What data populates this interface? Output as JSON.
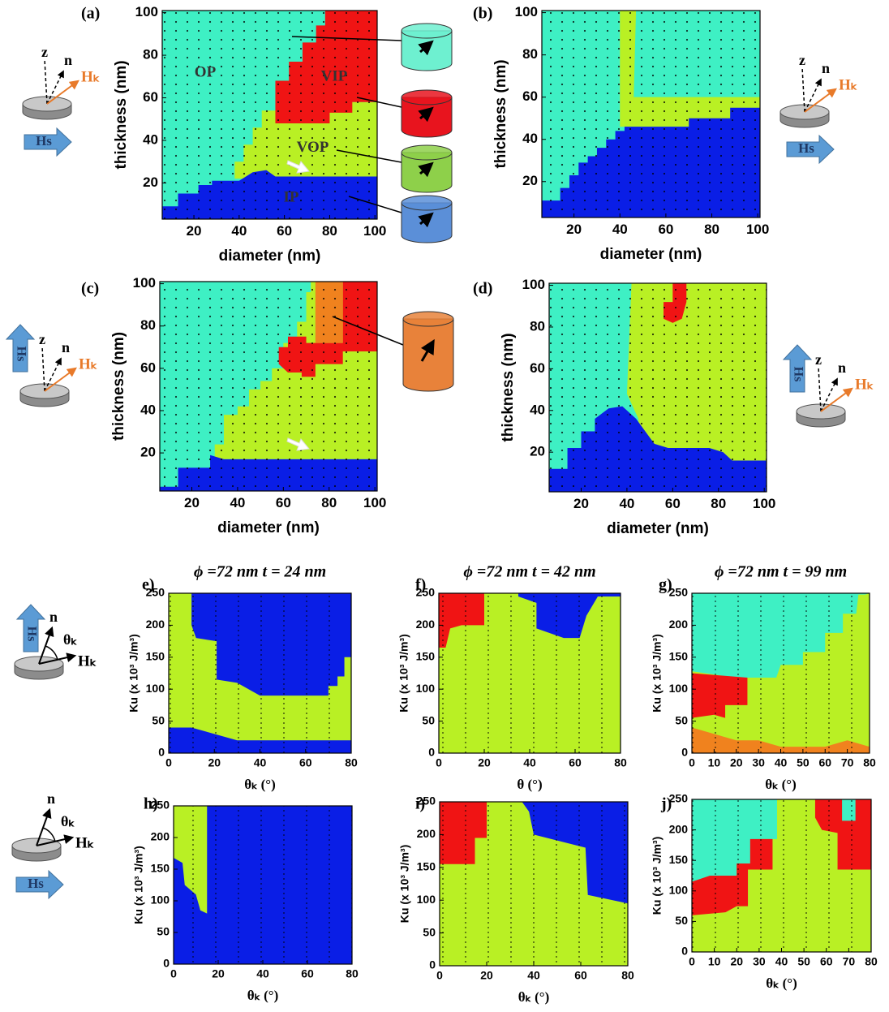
{
  "chart_data": [
    {
      "type": "phase",
      "label": "(a)",
      "x_label": "diameter (nm)",
      "y_label": "thickness (nm)",
      "xlim": [
        6,
        101
      ],
      "ylim": [
        3,
        101
      ],
      "xticks": [
        20,
        40,
        60,
        80,
        100
      ],
      "yticks": [
        20,
        40,
        60,
        80,
        100
      ],
      "annotations": [
        "OP",
        "VIP",
        "VOP",
        "IP"
      ],
      "inset": {
        "kind": "tilt",
        "field": "right",
        "labels": [
          "z",
          "n",
          "Hₖ",
          "Hs"
        ]
      },
      "regions": [
        {
          "color": "#3ef0c4",
          "x": [
            6,
            101,
            101,
            6
          ],
          "y": [
            3,
            3,
            101,
            101
          ]
        },
        {
          "color": "#b9f024",
          "x": [
            38,
            38,
            42,
            42,
            46,
            46,
            50,
            50,
            56,
            56,
            101,
            101
          ],
          "y": [
            22,
            30,
            30,
            38,
            38,
            46,
            46,
            54,
            54,
            58,
            58,
            22
          ]
        },
        {
          "color": "#f01414",
          "x": [
            56,
            56,
            62,
            62,
            68,
            68,
            74,
            74,
            78,
            78,
            101,
            101,
            90,
            90,
            80,
            80
          ],
          "y": [
            48,
            68,
            68,
            77,
            77,
            86,
            86,
            94,
            94,
            101,
            101,
            58,
            58,
            53,
            53,
            48
          ]
        },
        {
          "color": "#0a1ee6",
          "x": [
            6,
            6,
            13,
            13,
            22,
            22,
            28,
            28,
            40,
            46,
            52,
            56,
            101,
            101
          ],
          "y": [
            3,
            9,
            9,
            15,
            15,
            19,
            19,
            21,
            21,
            25,
            26,
            23,
            23,
            3
          ]
        }
      ]
    },
    {
      "type": "phase",
      "label": "(b)",
      "x_label": "diameter (nm)",
      "y_label": "thickness (nm)",
      "xlim": [
        6,
        101
      ],
      "ylim": [
        3,
        101
      ],
      "xticks": [
        20,
        40,
        60,
        80,
        100
      ],
      "yticks": [
        20,
        40,
        60,
        80,
        100
      ],
      "inset": {
        "kind": "tilt",
        "field": "right",
        "labels": [
          "z",
          "n",
          "Hₖ",
          "Hs"
        ]
      },
      "regions": [
        {
          "color": "#3ef0c4",
          "x": [
            6,
            101,
            101,
            6
          ],
          "y": [
            3,
            3,
            101,
            101
          ]
        },
        {
          "color": "#b9f024",
          "x": [
            40,
            47,
            46,
            101,
            101,
            40
          ],
          "y": [
            101,
            101,
            60,
            60,
            46,
            46
          ]
        },
        {
          "color": "#0a1ee6",
          "x": [
            6,
            6,
            14,
            14,
            18,
            18,
            22,
            22,
            26,
            26,
            30,
            30,
            34,
            34,
            38,
            38,
            42,
            42,
            70,
            70,
            88,
            88,
            101,
            101
          ],
          "y": [
            3,
            11,
            11,
            17,
            17,
            23,
            23,
            29,
            29,
            32,
            32,
            36,
            36,
            40,
            40,
            44,
            44,
            46,
            46,
            50,
            50,
            55,
            55,
            3
          ]
        }
      ]
    },
    {
      "type": "phase",
      "label": "(c)",
      "x_label": "diameter (nm)",
      "y_label": "thickness (nm)",
      "xlim": [
        6,
        101
      ],
      "ylim": [
        2,
        101
      ],
      "xticks": [
        20,
        40,
        60,
        80,
        100
      ],
      "yticks": [
        20,
        40,
        60,
        80,
        100
      ],
      "inset": {
        "kind": "tilt",
        "field": "up",
        "labels": [
          "z",
          "n",
          "Hₖ",
          "Hs"
        ]
      },
      "regions": [
        {
          "color": "#3ef0c4",
          "x": [
            6,
            101,
            101,
            6
          ],
          "y": [
            2,
            2,
            101,
            101
          ]
        },
        {
          "color": "#b9f024",
          "x": [
            30,
            30,
            34,
            34,
            40,
            40,
            45,
            45,
            50,
            50,
            55,
            55,
            60,
            60,
            66,
            66,
            70,
            70,
            72,
            72,
            101,
            101
          ],
          "y": [
            17,
            24,
            24,
            38,
            38,
            42,
            42,
            50,
            50,
            54,
            54,
            60,
            60,
            72,
            72,
            82,
            82,
            96,
            96,
            101,
            101,
            17
          ]
        },
        {
          "color": "#f01414",
          "x": [
            58,
            58,
            62,
            62,
            70,
            70,
            86,
            86,
            101,
            101,
            86,
            86,
            74,
            74,
            68,
            68,
            62
          ],
          "y": [
            62,
            70,
            70,
            75,
            75,
            72,
            72,
            101,
            101,
            68,
            68,
            62,
            62,
            56,
            56,
            58,
            58
          ]
        },
        {
          "color": "#f0821e",
          "x": [
            74,
            74,
            86,
            86
          ],
          "y": [
            72,
            101,
            101,
            72
          ]
        },
        {
          "color": "#0a1ee6",
          "x": [
            6,
            6,
            14,
            14,
            28,
            28,
            34,
            101,
            101
          ],
          "y": [
            2,
            4,
            4,
            13,
            13,
            19,
            17,
            17,
            2
          ]
        }
      ]
    },
    {
      "type": "phase",
      "label": "(d)",
      "x_label": "diameter (nm)",
      "y_label": "thickness (nm)",
      "xlim": [
        6,
        101
      ],
      "ylim": [
        1,
        101
      ],
      "xticks": [
        20,
        40,
        60,
        80,
        100
      ],
      "yticks": [
        20,
        40,
        60,
        80,
        100
      ],
      "inset": {
        "kind": "tilt",
        "field": "up",
        "labels": [
          "z",
          "n",
          "Hₖ",
          "Hs"
        ]
      },
      "regions": [
        {
          "color": "#3ef0c4",
          "x": [
            6,
            101,
            101,
            6
          ],
          "y": [
            1,
            1,
            101,
            101
          ]
        },
        {
          "color": "#b9f024",
          "x": [
            42,
            101,
            101,
            45,
            45,
            40
          ],
          "y": [
            101,
            101,
            10,
            10,
            36,
            48
          ]
        },
        {
          "color": "#f01414",
          "x": [
            60,
            66,
            66,
            64,
            60,
            56,
            56,
            60
          ],
          "y": [
            101,
            101,
            92,
            84,
            82,
            84,
            92,
            92
          ]
        },
        {
          "color": "#0a1ee6",
          "x": [
            6,
            6,
            14,
            14,
            20,
            20,
            26,
            26,
            32,
            38,
            44,
            48,
            52,
            58,
            76,
            82,
            86,
            101,
            101
          ],
          "y": [
            1,
            12,
            12,
            22,
            22,
            30,
            30,
            36,
            41,
            42,
            36,
            30,
            24,
            22,
            22,
            20,
            16,
            16,
            1
          ]
        }
      ]
    },
    {
      "type": "phase",
      "label": "e)",
      "title": "ϕ =72 nm t = 24 nm",
      "x_label": "θₖ (°)",
      "y_label": "Ku (x 10³ J/m³)",
      "xlim": [
        0,
        80
      ],
      "ylim": [
        0,
        250
      ],
      "xticks": [
        0,
        20,
        40,
        60,
        80
      ],
      "yticks": [
        0,
        50,
        100,
        150,
        200,
        250
      ],
      "inset": {
        "kind": "angle",
        "field": "up",
        "labels": [
          "n",
          "θₖ",
          "Hₖ",
          "Hs"
        ]
      },
      "regions": [
        {
          "color": "#b9f024",
          "x": [
            0,
            80,
            80,
            0
          ],
          "y": [
            0,
            0,
            250,
            250
          ]
        },
        {
          "color": "#0a1ee6",
          "x": [
            10,
            80,
            80,
            77,
            77,
            74,
            74,
            70,
            70,
            40,
            30,
            21,
            21,
            12,
            10
          ],
          "y": [
            250,
            250,
            150,
            150,
            120,
            120,
            105,
            105,
            90,
            90,
            110,
            115,
            175,
            180,
            200
          ]
        },
        {
          "color": "#0a1ee6",
          "x": [
            0,
            0,
            10,
            30,
            80,
            80
          ],
          "y": [
            0,
            40,
            40,
            20,
            20,
            0
          ]
        }
      ]
    },
    {
      "type": "phase",
      "label": "f)",
      "title": "ϕ =72 nm t = 42 nm",
      "x_label": "θ (°)",
      "y_label": "Ku (x 10³ J/m³)",
      "xlim": [
        0,
        80
      ],
      "ylim": [
        0,
        250
      ],
      "xticks": [
        0,
        20,
        40,
        60,
        80
      ],
      "yticks": [
        0,
        50,
        100,
        150,
        200,
        250
      ],
      "regions": [
        {
          "color": "#b9f024",
          "x": [
            0,
            80,
            80,
            0
          ],
          "y": [
            0,
            0,
            250,
            250
          ]
        },
        {
          "color": "#f01414",
          "x": [
            0,
            0,
            20,
            20,
            10,
            5,
            3
          ],
          "y": [
            165,
            250,
            250,
            200,
            200,
            195,
            165
          ]
        },
        {
          "color": "#0a1ee6",
          "x": [
            35,
            80,
            80,
            70,
            65,
            62,
            55,
            43,
            43,
            35
          ],
          "y": [
            250,
            250,
            245,
            245,
            215,
            180,
            180,
            195,
            235,
            245
          ]
        }
      ]
    },
    {
      "type": "phase",
      "label": "g)",
      "title": "ϕ =72 nm t = 99 nm",
      "x_label": "θₖ (°)",
      "y_label": "Ku (x 10³ J/m³)",
      "xlim": [
        0,
        80
      ],
      "ylim": [
        0,
        250
      ],
      "xticks": [
        0,
        10,
        20,
        30,
        40,
        50,
        60,
        70,
        80
      ],
      "yticks": [
        0,
        50,
        100,
        150,
        200,
        250
      ],
      "regions": [
        {
          "color": "#b9f024",
          "x": [
            0,
            80,
            80,
            0
          ],
          "y": [
            0,
            0,
            250,
            250
          ]
        },
        {
          "color": "#3ef0c4",
          "x": [
            0,
            0,
            80,
            78,
            75,
            74,
            68,
            68,
            60,
            60,
            50,
            50,
            40,
            38,
            20,
            0
          ],
          "y": [
            130,
            250,
            250,
            248,
            248,
            218,
            218,
            188,
            188,
            158,
            158,
            138,
            138,
            118,
            118,
            128
          ]
        },
        {
          "color": "#f01414",
          "x": [
            0,
            0,
            25,
            25,
            15,
            15,
            10
          ],
          "y": [
            55,
            125,
            118,
            75,
            75,
            55,
            60
          ]
        },
        {
          "color": "#f0821e",
          "x": [
            0,
            0,
            20,
            30,
            40,
            60,
            70,
            80,
            80
          ],
          "y": [
            0,
            40,
            20,
            20,
            10,
            10,
            20,
            10,
            0
          ]
        }
      ]
    },
    {
      "type": "phase",
      "label": "h)",
      "x_label": "θₖ (°)",
      "y_label": "Ku (x 10³ J/m³)",
      "xlim": [
        0,
        80
      ],
      "ylim": [
        0,
        250
      ],
      "xticks": [
        0,
        20,
        40,
        60,
        80
      ],
      "yticks": [
        0,
        50,
        100,
        150,
        200,
        250
      ],
      "inset": {
        "kind": "angle",
        "field": "right",
        "labels": [
          "n",
          "θₖ",
          "Hₖ",
          "Hs"
        ]
      },
      "regions": [
        {
          "color": "#0a1ee6",
          "x": [
            0,
            80,
            80,
            0
          ],
          "y": [
            0,
            0,
            250,
            250
          ]
        },
        {
          "color": "#b9f024",
          "x": [
            0,
            15,
            15,
            12,
            10,
            5,
            4,
            0
          ],
          "y": [
            250,
            250,
            80,
            85,
            110,
            125,
            160,
            168
          ]
        }
      ]
    },
    {
      "type": "phase",
      "label": "i)",
      "x_label": "θₖ (°)",
      "y_label": "Ku (x 10³ J/m³)",
      "xlim": [
        0,
        80
      ],
      "ylim": [
        0,
        250
      ],
      "xticks": [
        0,
        20,
        40,
        60,
        80
      ],
      "yticks": [
        0,
        50,
        100,
        150,
        200,
        250
      ],
      "regions": [
        {
          "color": "#b9f024",
          "x": [
            0,
            80,
            80,
            0
          ],
          "y": [
            0,
            0,
            250,
            250
          ]
        },
        {
          "color": "#f01414",
          "x": [
            0,
            0,
            20,
            20,
            15,
            15
          ],
          "y": [
            155,
            250,
            250,
            195,
            195,
            155
          ]
        },
        {
          "color": "#0a1ee6",
          "x": [
            35,
            80,
            80,
            63,
            62,
            40,
            38
          ],
          "y": [
            250,
            250,
            95,
            108,
            180,
            200,
            235
          ]
        }
      ]
    },
    {
      "type": "phase",
      "label": "j)",
      "x_label": "θₖ (°)",
      "y_label": "Ku (x 10³ J/m³)",
      "xlim": [
        0,
        80
      ],
      "ylim": [
        0,
        250
      ],
      "xticks": [
        0,
        10,
        20,
        30,
        40,
        50,
        60,
        70,
        80
      ],
      "yticks": [
        0,
        50,
        100,
        150,
        200,
        250
      ],
      "regions": [
        {
          "color": "#b9f024",
          "x": [
            0,
            80,
            80,
            0
          ],
          "y": [
            0,
            0,
            250,
            250
          ]
        },
        {
          "color": "#3ef0c4",
          "x": [
            0,
            0,
            38,
            38,
            30,
            30,
            20,
            20,
            10
          ],
          "y": [
            112,
            250,
            250,
            185,
            185,
            145,
            145,
            125,
            125
          ]
        },
        {
          "color": "#f01414",
          "x": [
            0,
            0,
            8,
            20,
            20,
            26,
            26,
            36,
            36,
            25,
            25,
            20,
            15
          ],
          "y": [
            60,
            115,
            125,
            125,
            145,
            145,
            185,
            185,
            135,
            135,
            75,
            75,
            65
          ]
        },
        {
          "color": "#f01414",
          "x": [
            55,
            80,
            80,
            65,
            65,
            58,
            55
          ],
          "y": [
            250,
            250,
            135,
            135,
            195,
            200,
            220
          ]
        },
        {
          "color": "#3ef0c4",
          "x": [
            67,
            73,
            73,
            67
          ],
          "y": [
            250,
            250,
            215,
            215
          ]
        }
      ]
    }
  ]
}
